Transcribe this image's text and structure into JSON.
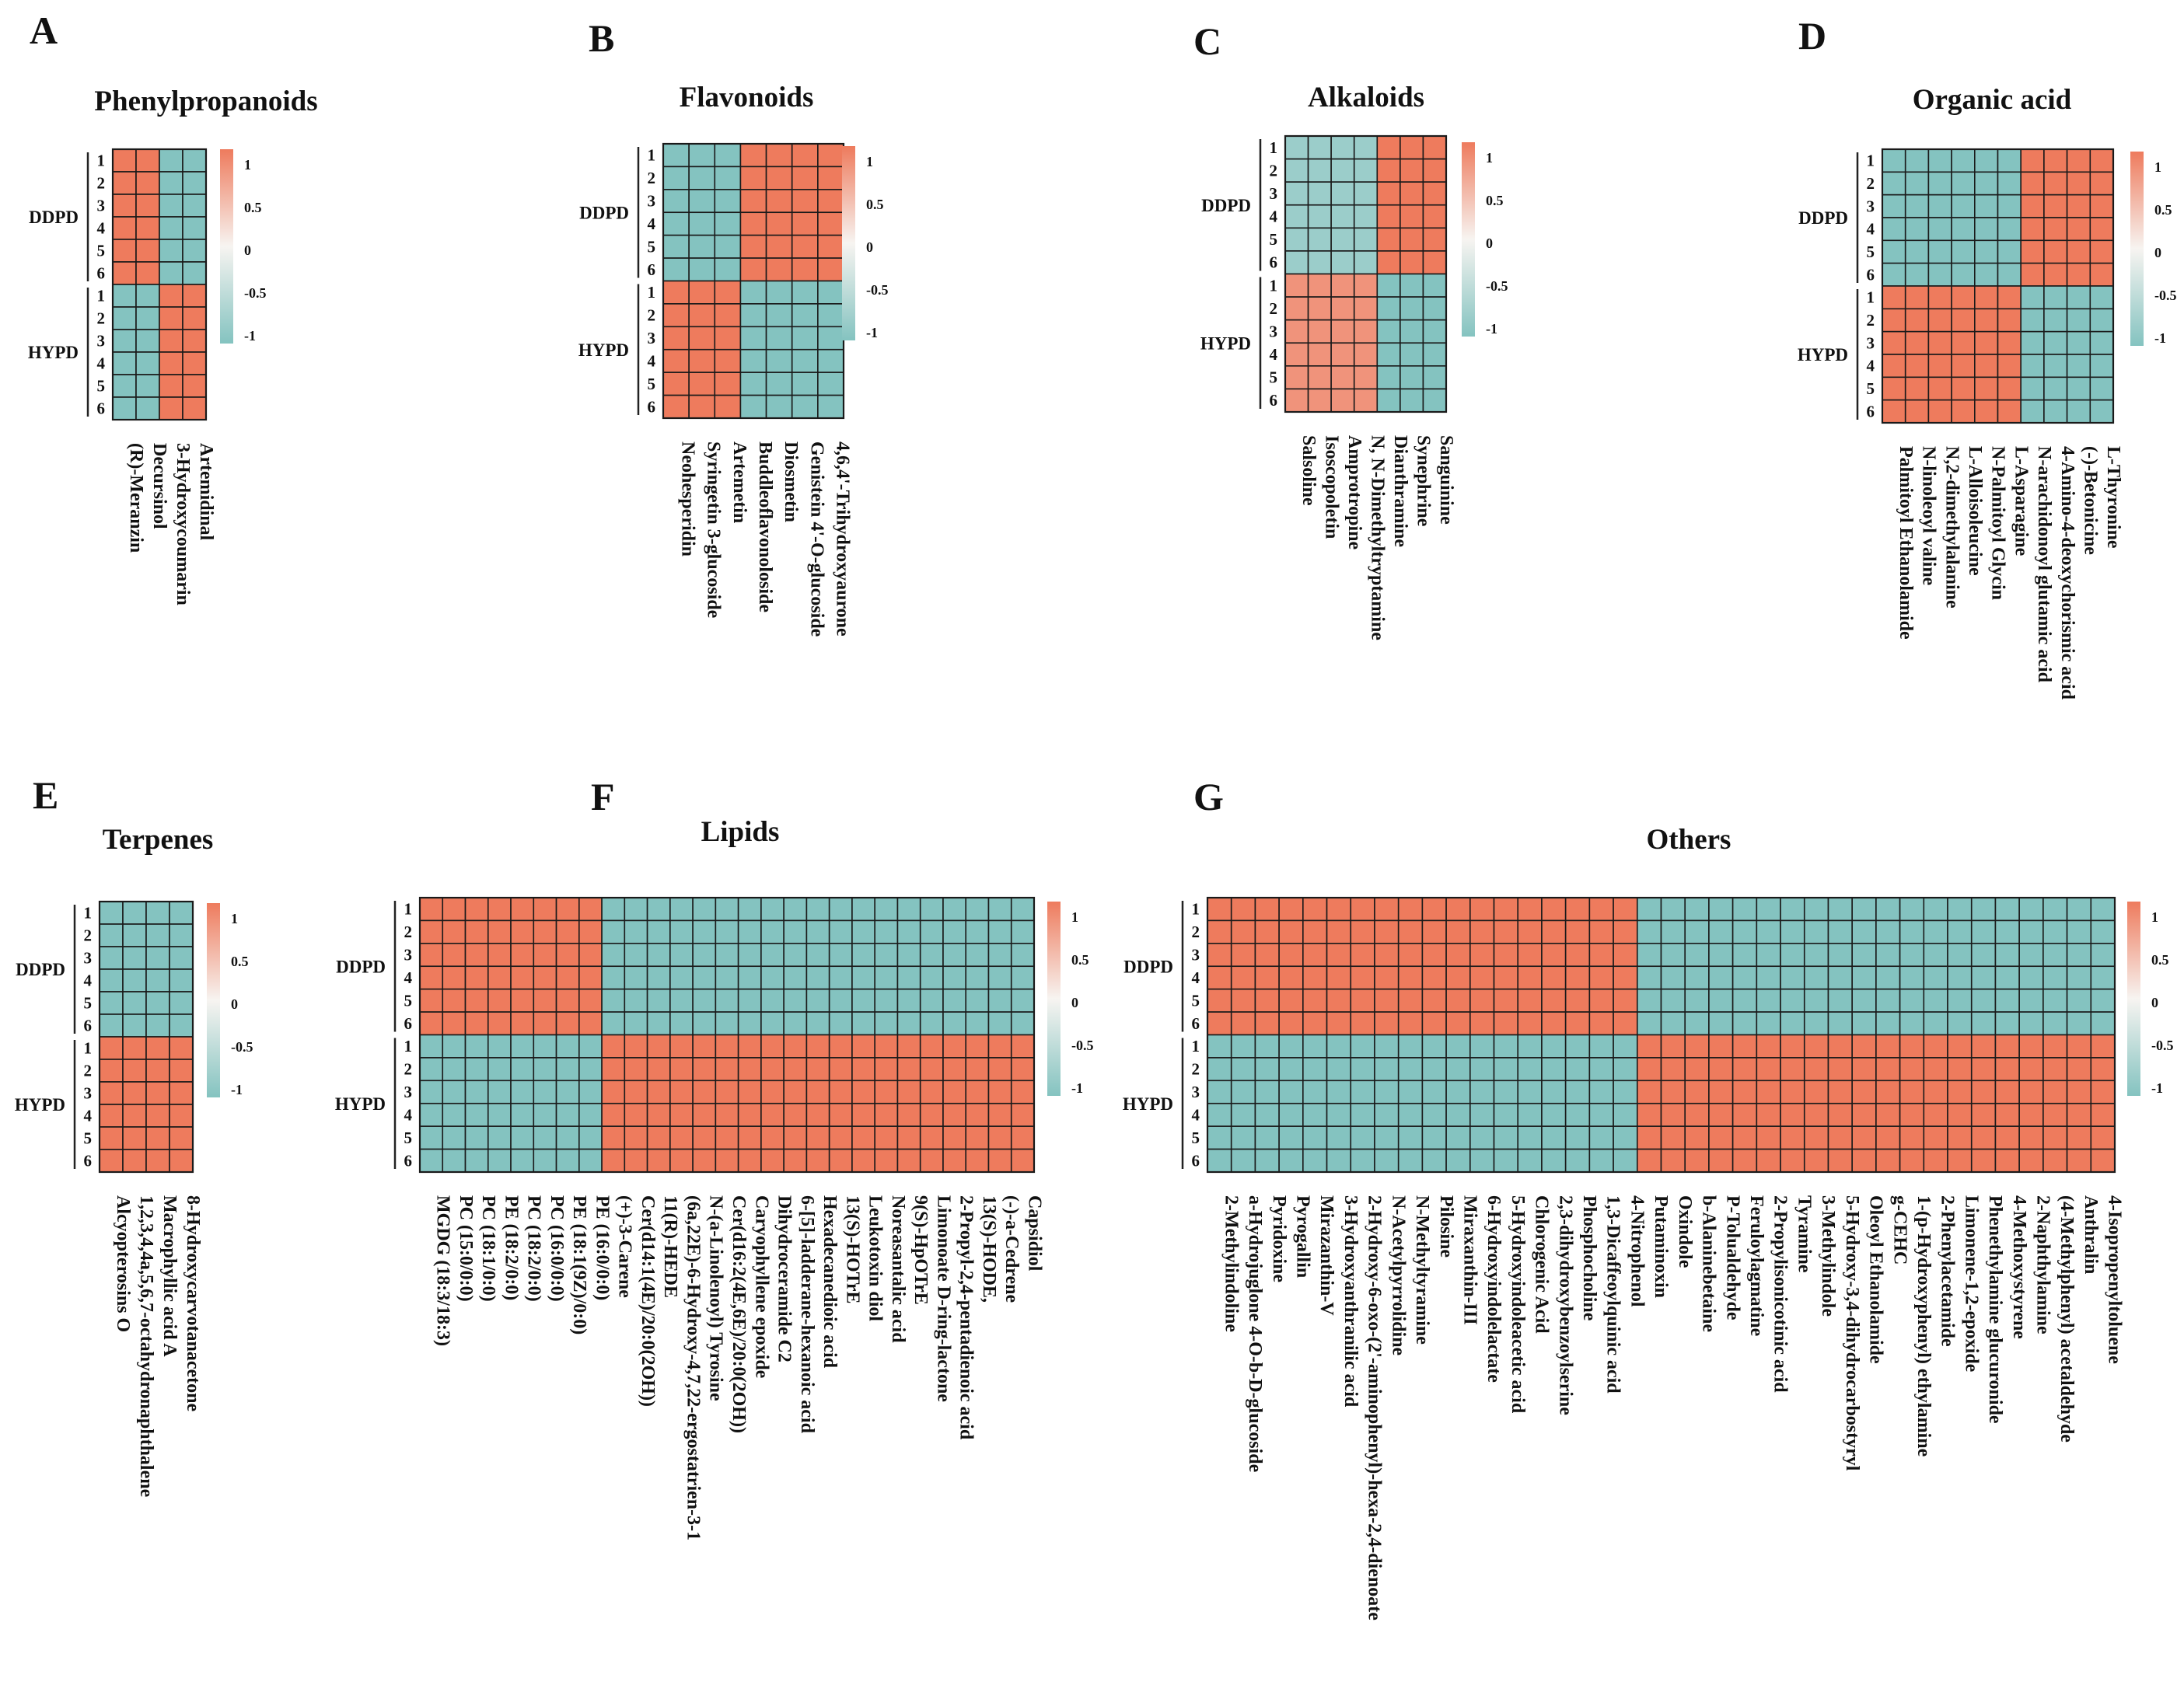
{
  "palette": {
    "high": "#ee7b5d",
    "mid": "#f7f4f1",
    "low": "#84c3c0",
    "grid": "#1a1a1a"
  },
  "group_labels": [
    "DDPD",
    "HYPD"
  ],
  "row_labels": [
    "1",
    "2",
    "3",
    "4",
    "5",
    "6",
    "1",
    "2",
    "3",
    "4",
    "5",
    "6"
  ],
  "legend_ticks": [
    "1",
    "0.5",
    "0",
    "-0.5",
    "-1"
  ],
  "chart_data": [
    {
      "type": "heatmap",
      "panel": "A",
      "title": "Phenylpropanoids",
      "columns": [
        "(R)-Meranzin",
        "Decursinol",
        "3-Hydroxycoumarin",
        "Artemidinal"
      ],
      "pattern": [
        1,
        1,
        -1,
        -1
      ],
      "rows": [
        "DDPD 1",
        "DDPD 2",
        "DDPD 3",
        "DDPD 4",
        "DDPD 5",
        "DDPD 6",
        "HYPD 1",
        "HYPD 2",
        "HYPD 3",
        "HYPD 4",
        "HYPD 5",
        "HYPD 6"
      ],
      "value_range": [
        -1,
        1
      ]
    },
    {
      "type": "heatmap",
      "panel": "B",
      "title": "Flavonoids",
      "columns": [
        "Neohesperidin",
        "Syringetin 3-glucoside",
        "Artemetin",
        "Buddleoflavonoloside",
        "Diosmetin",
        "Genistein 4'-O-glucoside",
        "4,6,4'-Trihydroxyaurone"
      ],
      "pattern": [
        -1,
        -1,
        -1,
        1,
        1,
        1,
        1
      ],
      "rows": [
        "DDPD 1",
        "DDPD 2",
        "DDPD 3",
        "DDPD 4",
        "DDPD 5",
        "DDPD 6",
        "HYPD 1",
        "HYPD 2",
        "HYPD 3",
        "HYPD 4",
        "HYPD 5",
        "HYPD 6"
      ],
      "value_range": [
        -1,
        1
      ]
    },
    {
      "type": "heatmap",
      "panel": "C",
      "title": "Alkaloids",
      "columns": [
        "Salsoline",
        "Isoscopoletin",
        "Amprotropine",
        "N, N-Dimethyltryptamine",
        "Dianthramine",
        "Synephrine",
        "Sanguinine"
      ],
      "pattern": [
        -0.8,
        -0.8,
        -0.8,
        -0.8,
        1,
        1,
        1
      ],
      "rows": [
        "DDPD 1",
        "DDPD 2",
        "DDPD 3",
        "DDPD 4",
        "DDPD 5",
        "DDPD 6",
        "HYPD 1",
        "HYPD 2",
        "HYPD 3",
        "HYPD 4",
        "HYPD 5",
        "HYPD 6"
      ],
      "value_range": [
        -1,
        1
      ]
    },
    {
      "type": "heatmap",
      "panel": "D",
      "title": "Organic acid",
      "columns": [
        "Palmitoyl Ethanolamide",
        "N-linoleoyl valine",
        "N,2-dimethylalanine",
        "L-Alloisoleucine",
        "N-Palmitoyl Glycin",
        "L-Asparagine",
        "N-arachidonoyl glutamic acid",
        "4-Amino-4-deoxychorismic acid",
        "(-)-Betonicine",
        "L-Thyronine"
      ],
      "pattern": [
        -1,
        -1,
        -1,
        -1,
        -1,
        -1,
        1,
        1,
        1,
        1
      ],
      "rows": [
        "DDPD 1",
        "DDPD 2",
        "DDPD 3",
        "DDPD 4",
        "DDPD 5",
        "DDPD 6",
        "HYPD 1",
        "HYPD 2",
        "HYPD 3",
        "HYPD 4",
        "HYPD 5",
        "HYPD 6"
      ],
      "value_range": [
        -1,
        1
      ]
    },
    {
      "type": "heatmap",
      "panel": "E",
      "title": "Terpenes",
      "columns": [
        "Alcyopterosins O",
        "1,2,3,4,4a,5,6,7-octahydronaphthalene",
        "Macrophyllic acid A",
        "8-Hydroxycarvotanacetone"
      ],
      "pattern": [
        -1,
        -1,
        -1,
        -1
      ],
      "rows": [
        "DDPD 1",
        "DDPD 2",
        "DDPD 3",
        "DDPD 4",
        "DDPD 5",
        "DDPD 6",
        "HYPD 1",
        "HYPD 2",
        "HYPD 3",
        "HYPD 4",
        "HYPD 5",
        "HYPD 6"
      ],
      "value_range": [
        -1,
        1
      ]
    },
    {
      "type": "heatmap",
      "panel": "F",
      "title": "Lipids",
      "columns": [
        "MGDG (18:3/18:3)",
        "PC (15:0/0:0)",
        "PC (18:1/0:0)",
        "PE (18:2/0:0)",
        "PC (18:2/0:0)",
        "PC (16:0/0:0)",
        "PE (18:1(9Z)/0:0)",
        "PE (16:0/0:0)",
        "(+)-3-Carene",
        "Cer(d14:1(4E)/20:0(2OH))",
        "11(R)-HEDE",
        "(6a,22E)-6-Hydroxy-4,7,22-ergostatrien-3-1",
        "N-(a-Linolenoyl) Tyrosine",
        "Cer(d16:2(4E,6E)/20:0(2OH))",
        "Caryophyllene epoxide",
        "Dihydroceramide C2",
        "6-[5]-ladderane-hexanoic acid",
        "Hexadecanedioic acid",
        "13(S)-HOTrE",
        "Leukotoxin diol",
        "Noreasantalic acid",
        "9(S)-HpOTrE",
        "Limonoate D-ring-lactone",
        "2-Propyl-2,4-pentadienoic acid",
        "13(S)-HODE,",
        "(-)-a-Cedrene",
        "Capsidiol"
      ],
      "pattern": [
        1,
        1,
        1,
        1,
        1,
        1,
        1,
        1,
        -1,
        -1,
        -1,
        -1,
        -1,
        -1,
        -1,
        -1,
        -1,
        -1,
        -1,
        -1,
        -1,
        -1,
        -1,
        -1,
        -1,
        -1,
        -1
      ],
      "rows": [
        "DDPD 1",
        "DDPD 2",
        "DDPD 3",
        "DDPD 4",
        "DDPD 5",
        "DDPD 6",
        "HYPD 1",
        "HYPD 2",
        "HYPD 3",
        "HYPD 4",
        "HYPD 5",
        "HYPD 6"
      ],
      "value_range": [
        -1,
        1
      ]
    },
    {
      "type": "heatmap",
      "panel": "G",
      "title": "Others",
      "columns": [
        "2-Methylindoline",
        "a-Hydrojuglone 4-O-b-D-glucoside",
        "Pyridoxine",
        "Pyrogallin",
        "Mirazanthin-V",
        "3-Hydroxyanthranilic acid",
        "2-Hydroxy-6-oxo-(2'-aminophenyl)-hexa-2,4-dienoate",
        "N-Acetylpyrrolidine",
        "N-Methyltyramine",
        "Pilosine",
        "Miraxanthin-III",
        "6-Hydroxyindolelactate",
        "5-Hydroxyindoleacetic acid",
        "Chlorogenic Acid",
        "2,3-dihydroxybenzoylserine",
        "Phosphocholine",
        "1,3-Dicaffeoylquinic acid",
        "4-Nitrophenol",
        "Putaminoxin",
        "Oxindole",
        "b-Alaninebetaine",
        "P-Tolualdehyde",
        "Feruloylagmatine",
        "2-Propylisonicotinic acid",
        "Tyramine",
        "3-Methylindole",
        "5-Hydroxy-3,4-dihydrocarbostyryl",
        "Oleoyl Ethanolamide",
        "g-CEHC",
        "1-(p-Hydroxyphenyl) ethylamine",
        "2-Phenylacetamide",
        "Limonene-1,2-epoxide",
        "Phenethylamine glucuronide",
        "4-Methoxystyrene",
        "2-Naphthylamine",
        "(4-Methylphenyl) acetaldehyde",
        "Anthralin",
        "4-Isopropenyltoluene"
      ],
      "pattern": [
        1,
        1,
        1,
        1,
        1,
        1,
        1,
        1,
        1,
        1,
        1,
        1,
        1,
        1,
        1,
        1,
        1,
        1,
        -1,
        -1,
        -1,
        -1,
        -1,
        -1,
        -1,
        -1,
        -1,
        -1,
        -1,
        -1,
        -1,
        -1,
        -1,
        -1,
        -1,
        -1,
        -1,
        -1
      ],
      "rows": [
        "DDPD 1",
        "DDPD 2",
        "DDPD 3",
        "DDPD 4",
        "DDPD 5",
        "DDPD 6",
        "HYPD 1",
        "HYPD 2",
        "HYPD 3",
        "HYPD 4",
        "HYPD 5",
        "HYPD 6"
      ],
      "value_range": [
        -1,
        1
      ]
    }
  ]
}
